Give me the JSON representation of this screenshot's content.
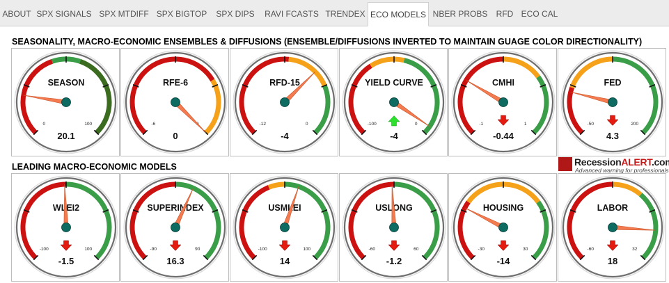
{
  "tabs": [
    {
      "id": "about",
      "label": "ABOUT",
      "active": false
    },
    {
      "id": "spx-signals",
      "label": "SPX SIGNALS",
      "active": false
    },
    {
      "id": "spx-mtdiff",
      "label": "SPX MTDIFF",
      "active": false
    },
    {
      "id": "spx-bigtop",
      "label": "SPX BIGTOP",
      "active": false
    },
    {
      "id": "spx-dips",
      "label": "SPX DIPS",
      "active": false
    },
    {
      "id": "ravi-fcasts",
      "label": "RAVI FCASTS",
      "active": false
    },
    {
      "id": "trendex",
      "label": "TRENDEX",
      "active": false
    },
    {
      "id": "eco-models",
      "label": "ECO MODELS",
      "active": true
    },
    {
      "id": "nber-probs",
      "label": "NBER PROBS",
      "active": false
    },
    {
      "id": "rfd",
      "label": "RFD",
      "active": false
    },
    {
      "id": "eco-cal",
      "label": "ECO CAL",
      "active": false
    }
  ],
  "sections": {
    "seasonality_title": "SEASONALITY, MACRO-ECONOMIC ENSEMBLES & DIFFUSIONS (ENSEMBLE/DIFFUSIONS INVERTED TO MAINTAIN GUAGE COLOR DIRECTIONALITY)",
    "leading_title": "LEADING MACRO-ECONOMIC MODELS"
  },
  "logo": {
    "text_main": "Recession",
    "text_highlight": "ALERT",
    "text_suffix": ".com",
    "tagline": "Advanced warning for professionals"
  },
  "gauges": [
    {
      "id": "season",
      "title": "SEASON",
      "min": 0,
      "max": 100,
      "min_label": "0",
      "max_label": "100",
      "value": 20.1,
      "value_label": "20.1",
      "arrow": "none",
      "bands": [
        {
          "from": 0,
          "to": 0.43,
          "color": "#cc1111"
        },
        {
          "from": 0.43,
          "to": 0.57,
          "color": "#3a9e48"
        },
        {
          "from": 0.57,
          "to": 1,
          "color": "#3a6b1e"
        }
      ]
    },
    {
      "id": "rfe-6",
      "title": "RFE-6",
      "min": -6,
      "max": 0,
      "min_label": "-6",
      "max_label": "0",
      "value": 0,
      "value_label": "0",
      "arrow": "none",
      "bands": [
        {
          "from": 0,
          "to": 0.72,
          "color": "#cc1111"
        },
        {
          "from": 0.72,
          "to": 1,
          "color": "#f5a11a"
        }
      ]
    },
    {
      "id": "rfd-15",
      "title": "RFD-15",
      "min": -12,
      "max": 0,
      "min_label": "-12",
      "max_label": "0",
      "value": -4,
      "value_label": "-4",
      "arrow": "none",
      "bands": [
        {
          "from": 0,
          "to": 0.52,
          "color": "#cc1111"
        },
        {
          "from": 0.52,
          "to": 0.75,
          "color": "#f5a11a"
        },
        {
          "from": 0.75,
          "to": 1,
          "color": "#3a9e48"
        }
      ]
    },
    {
      "id": "yield-curve",
      "title": "YIELD CURVE",
      "min": -100,
      "max": 0,
      "min_label": "-100",
      "max_label": "0",
      "value": -4,
      "value_label": "-4",
      "arrow": "up",
      "bands": [
        {
          "from": 0,
          "to": 0.38,
          "color": "#cc1111"
        },
        {
          "from": 0.38,
          "to": 0.55,
          "color": "#f5a11a"
        },
        {
          "from": 0.55,
          "to": 1,
          "color": "#3a9e48"
        }
      ]
    },
    {
      "id": "cmhi",
      "title": "CMHI",
      "min": -1,
      "max": 1,
      "min_label": "-1",
      "max_label": "1",
      "value": -0.44,
      "value_label": "-0.44",
      "arrow": "down",
      "bands": [
        {
          "from": 0,
          "to": 0.5,
          "color": "#cc1111"
        },
        {
          "from": 0.5,
          "to": 0.7,
          "color": "#f5a11a"
        },
        {
          "from": 0.7,
          "to": 1,
          "color": "#3a9e48"
        }
      ]
    },
    {
      "id": "fed",
      "title": "FED",
      "min": -50,
      "max": 200,
      "min_label": "-50",
      "max_label": "200",
      "value": 4.3,
      "value_label": "4.3",
      "arrow": "down",
      "bands": [
        {
          "from": 0,
          "to": 0.24,
          "color": "#cc1111"
        },
        {
          "from": 0.24,
          "to": 0.5,
          "color": "#f5a11a"
        },
        {
          "from": 0.5,
          "to": 1,
          "color": "#3a9e48"
        }
      ]
    },
    {
      "id": "wlei2",
      "title": "WLEI2",
      "min": -100,
      "max": 100,
      "min_label": "-100",
      "max_label": "100",
      "value": -1.5,
      "value_label": "-1.5",
      "arrow": "down",
      "bands": [
        {
          "from": 0,
          "to": 0.5,
          "color": "#cc1111"
        },
        {
          "from": 0.5,
          "to": 1,
          "color": "#3a9e48"
        }
      ]
    },
    {
      "id": "superindex",
      "title": "SUPERINDEX",
      "min": -90,
      "max": 90,
      "min_label": "-90",
      "max_label": "90",
      "value": 16.3,
      "value_label": "16.3",
      "arrow": "down",
      "bands": [
        {
          "from": 0,
          "to": 0.5,
          "color": "#cc1111"
        },
        {
          "from": 0.5,
          "to": 1,
          "color": "#3a9e48"
        }
      ]
    },
    {
      "id": "usmlei",
      "title": "USMLEI",
      "min": -100,
      "max": 100,
      "min_label": "-100",
      "max_label": "100",
      "value": 14,
      "value_label": "14",
      "arrow": "down",
      "bands": [
        {
          "from": 0,
          "to": 0.42,
          "color": "#cc1111"
        },
        {
          "from": 0.42,
          "to": 0.5,
          "color": "#f5a11a"
        },
        {
          "from": 0.5,
          "to": 1,
          "color": "#3a9e48"
        }
      ]
    },
    {
      "id": "uslong",
      "title": "USLONG",
      "min": -60,
      "max": 60,
      "min_label": "-60",
      "max_label": "60",
      "value": -1.2,
      "value_label": "-1.2",
      "arrow": "down",
      "bands": [
        {
          "from": 0,
          "to": 0.5,
          "color": "#cc1111"
        },
        {
          "from": 0.5,
          "to": 1,
          "color": "#3a9e48"
        }
      ]
    },
    {
      "id": "housing",
      "title": "HOUSING",
      "min": -30,
      "max": 30,
      "min_label": "-30",
      "max_label": "30",
      "value": -14,
      "value_label": "-14",
      "arrow": "down",
      "bands": [
        {
          "from": 0,
          "to": 0.3,
          "color": "#cc1111"
        },
        {
          "from": 0.3,
          "to": 0.7,
          "color": "#f5a11a"
        },
        {
          "from": 0.7,
          "to": 1,
          "color": "#3a9e48"
        }
      ]
    },
    {
      "id": "labor",
      "title": "LABOR",
      "min": -60,
      "max": 32,
      "min_label": "-60",
      "max_label": "32",
      "value": 18,
      "value_label": "18",
      "arrow": "down",
      "bands": [
        {
          "from": 0,
          "to": 0.5,
          "color": "#cc1111"
        },
        {
          "from": 0.5,
          "to": 0.65,
          "color": "#f5a11a"
        },
        {
          "from": 0.65,
          "to": 1,
          "color": "#3a9e48"
        }
      ]
    }
  ],
  "colors": {
    "needle": "#f47b4f",
    "hub": "#0d6b62",
    "arrow_up": "#2ee02e",
    "arrow_down": "#e31b10",
    "dial_face": "#ffffff",
    "ring_dark": "#6e6e6e",
    "ring_light": "#d8d8d8"
  }
}
